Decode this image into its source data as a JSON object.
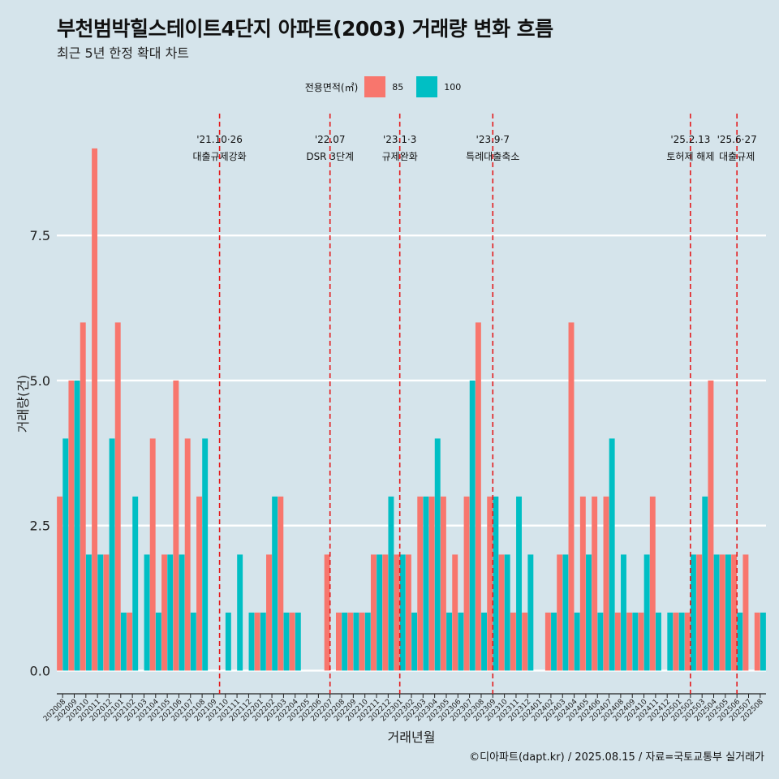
{
  "title": "부천범박힐스테이트4단지 아파트(2003) 거래량 변화 흐름",
  "subtitle": "최근 5년 한정 확대 차트",
  "caption": "©디아파트(dapt.kr) / 2025.08.15 / 자료=국토교통부 실거래가",
  "colors": {
    "background": "#d5e4eb",
    "series85": "#f8766d",
    "series100": "#00bfc4",
    "event_line": "#e41a1c",
    "grid": "#ffffff"
  },
  "legend": {
    "title": "전용면적(㎡)",
    "items": [
      "85",
      "100"
    ]
  },
  "chart_data": {
    "type": "bar",
    "title": "부천범박힐스테이트4단지 아파트(2003) 거래량 변화 흐름",
    "xlabel": "거래년월",
    "ylabel": "거래량(건)",
    "ylim": [
      -0.4,
      9.6
    ],
    "yticks": [
      0,
      2.5,
      5,
      7.5
    ],
    "ytick_labels": [
      "0.0",
      "2.5",
      "5.0",
      "7.5"
    ],
    "categories": [
      "202008",
      "202009",
      "202010",
      "202011",
      "202012",
      "202101",
      "202102",
      "202103",
      "202104",
      "202105",
      "202106",
      "202107",
      "202108",
      "202109",
      "202110",
      "202111",
      "202112",
      "202201",
      "202202",
      "202203",
      "202204",
      "202205",
      "202206",
      "202207",
      "202208",
      "202209",
      "202210",
      "202211",
      "202212",
      "202301",
      "202302",
      "202303",
      "202304",
      "202305",
      "202306",
      "202307",
      "202308",
      "202309",
      "202310",
      "202311",
      "202312",
      "202401",
      "202402",
      "202403",
      "202404",
      "202405",
      "202406",
      "202407",
      "202408",
      "202409",
      "202410",
      "202411",
      "202412",
      "202501",
      "202502",
      "202503",
      "202504",
      "202505",
      "202506",
      "202507",
      "202508"
    ],
    "series": [
      {
        "name": "85",
        "values": [
          3,
          5,
          6,
          9,
          2,
          6,
          1,
          0,
          4,
          2,
          5,
          4,
          3,
          0,
          0,
          0,
          0,
          1,
          2,
          3,
          1,
          0,
          0,
          2,
          1,
          1,
          1,
          2,
          2,
          2,
          2,
          3,
          3,
          3,
          2,
          3,
          6,
          3,
          2,
          1,
          1,
          0,
          1,
          2,
          6,
          3,
          3,
          3,
          1,
          1,
          1,
          3,
          0,
          1,
          1,
          2,
          5,
          2,
          2,
          2,
          1
        ]
      },
      {
        "name": "100",
        "values": [
          4,
          5,
          2,
          2,
          4,
          1,
          3,
          2,
          1,
          2,
          2,
          1,
          4,
          0,
          1,
          2,
          1,
          1,
          3,
          1,
          1,
          0,
          0,
          0,
          1,
          1,
          1,
          2,
          3,
          2,
          1,
          3,
          4,
          1,
          1,
          5,
          1,
          3,
          2,
          3,
          2,
          0,
          1,
          2,
          1,
          2,
          1,
          4,
          2,
          1,
          2,
          1,
          1,
          1,
          2,
          3,
          2,
          2,
          1,
          0,
          1
        ]
      }
    ],
    "events": [
      {
        "date": "'21.10·26",
        "label": "대출규제강화",
        "position": 13.5
      },
      {
        "date": "'22.07",
        "label": "DSR 3단계",
        "position": 23
      },
      {
        "date": "'23.1·3",
        "label": "규제완화",
        "position": 29
      },
      {
        "date": "'23.9·7",
        "label": "특례대출축소",
        "position": 37
      },
      {
        "date": "'25.2.13",
        "label": "토허제 해제",
        "position": 54
      },
      {
        "date": "'25.6·27",
        "label": "대출규제",
        "position": 58
      }
    ]
  }
}
